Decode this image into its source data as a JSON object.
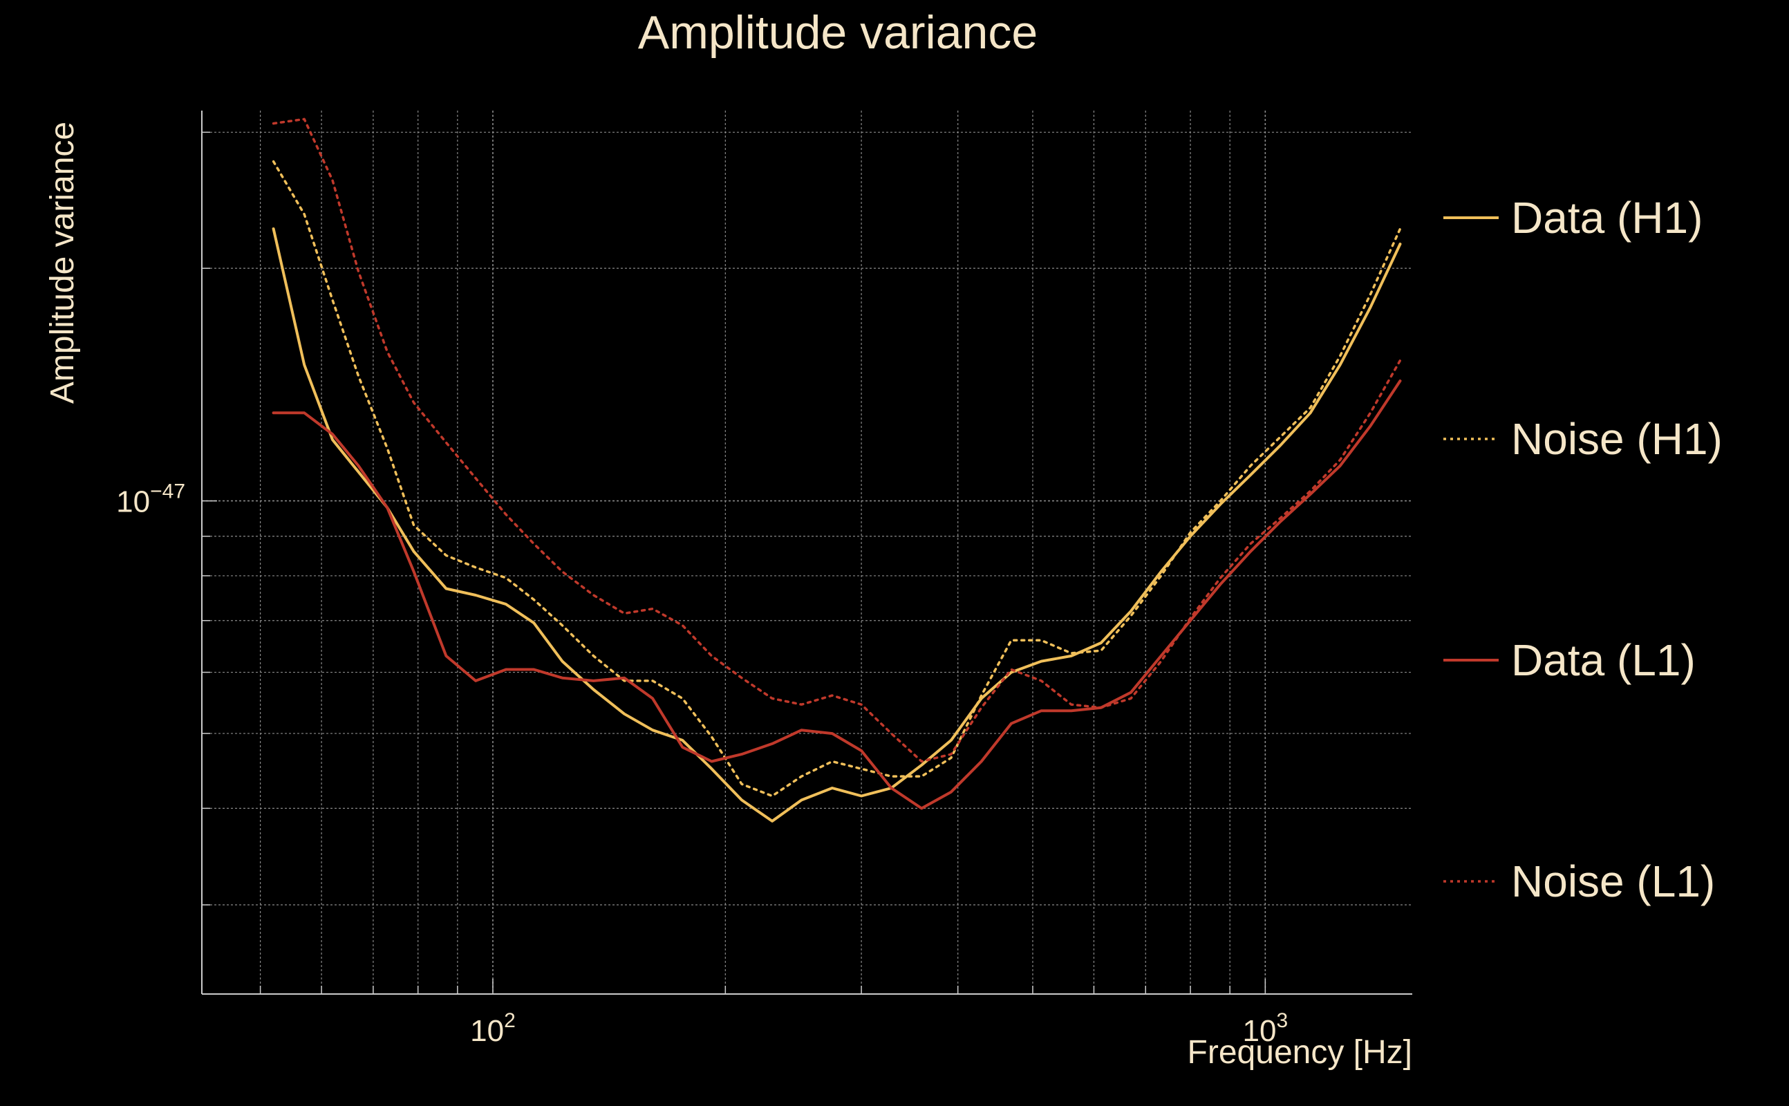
{
  "chart_data": {
    "type": "line",
    "title": "Amplitude variance",
    "xlabel": "Frequency [Hz]",
    "ylabel": "Amplitude variance",
    "xscale": "log",
    "yscale": "log",
    "xlim": [
      42,
      1550
    ],
    "ylim": [
      2.3e-48,
      3.2e-47
    ],
    "grid": true,
    "legend_position": "right",
    "x_ticks": [
      {
        "value": 100,
        "base": "10",
        "exp": "2"
      },
      {
        "value": 1000,
        "base": "10",
        "exp": "3"
      }
    ],
    "y_ticks": [
      {
        "value": 1e-47,
        "base": "10",
        "exp": "−47"
      }
    ],
    "x": [
      52,
      57,
      62,
      67,
      73,
      79,
      87,
      95,
      104,
      113,
      123,
      135,
      148,
      161,
      176,
      192,
      210,
      230,
      251,
      275,
      300,
      328,
      359,
      392,
      429,
      469,
      513,
      561,
      613,
      670,
      733,
      800,
      875,
      957,
      1046,
      1144,
      1250,
      1368,
      1495
    ],
    "series": [
      {
        "name": "Data (H1)",
        "color": "#f0bf5a",
        "dash": "solid",
        "values": [
          2.25e-47,
          1.5e-47,
          1.2e-47,
          1.09e-47,
          9.8e-48,
          8.6e-48,
          7.7e-48,
          7.55e-48,
          7.35e-48,
          6.95e-48,
          6.2e-48,
          5.7e-48,
          5.3e-48,
          5.05e-48,
          4.9e-48,
          4.5e-48,
          4.1e-48,
          3.85e-48,
          4.1e-48,
          4.25e-48,
          4.15e-48,
          4.25e-48,
          4.55e-48,
          4.9e-48,
          5.55e-48,
          6e-48,
          6.2e-48,
          6.3e-48,
          6.55e-48,
          7.2e-48,
          8.1e-48,
          9e-48,
          9.9e-48,
          1.08e-47,
          1.18e-47,
          1.3e-47,
          1.5e-47,
          1.78e-47,
          2.15e-47
        ]
      },
      {
        "name": "Noise (H1)",
        "color": "#f0bf5a",
        "dash": "dotted",
        "values": [
          2.75e-47,
          2.35e-47,
          1.82e-47,
          1.45e-47,
          1.17e-47,
          9.3e-48,
          8.5e-48,
          8.2e-48,
          7.95e-48,
          7.45e-48,
          6.9e-48,
          6.3e-48,
          5.85e-48,
          5.85e-48,
          5.55e-48,
          4.95e-48,
          4.3e-48,
          4.15e-48,
          4.4e-48,
          4.6e-48,
          4.5e-48,
          4.4e-48,
          4.4e-48,
          4.65e-48,
          5.6e-48,
          6.6e-48,
          6.6e-48,
          6.35e-48,
          6.4e-48,
          7.1e-48,
          8e-48,
          9.1e-48,
          1e-47,
          1.11e-47,
          1.21e-47,
          1.32e-47,
          1.54e-47,
          1.85e-47,
          2.25e-47
        ]
      },
      {
        "name": "Data (L1)",
        "color": "#c0392b",
        "dash": "solid",
        "values": [
          1.3e-47,
          1.3e-47,
          1.22e-47,
          1.11e-47,
          9.8e-48,
          8.1e-48,
          6.3e-48,
          5.85e-48,
          6.05e-48,
          6.05e-48,
          5.9e-48,
          5.85e-48,
          5.9e-48,
          5.55e-48,
          4.8e-48,
          4.6e-48,
          4.7e-48,
          4.85e-48,
          5.05e-48,
          5e-48,
          4.75e-48,
          4.25e-48,
          4e-48,
          4.2e-48,
          4.6e-48,
          5.15e-48,
          5.35e-48,
          5.35e-48,
          5.4e-48,
          5.65e-48,
          6.3e-48,
          7e-48,
          7.8e-48,
          8.6e-48,
          9.4e-48,
          1.02e-47,
          1.11e-47,
          1.25e-47,
          1.43e-47
        ]
      },
      {
        "name": "Noise (L1)",
        "color": "#c0392b",
        "dash": "dotted",
        "values": [
          3.08e-47,
          3.12e-47,
          2.6e-47,
          1.98e-47,
          1.56e-47,
          1.34e-47,
          1.19e-47,
          1.07e-47,
          9.6e-48,
          8.8e-48,
          8.1e-48,
          7.55e-48,
          7.15e-48,
          7.25e-48,
          6.9e-48,
          6.3e-48,
          5.9e-48,
          5.55e-48,
          5.45e-48,
          5.6e-48,
          5.45e-48,
          5e-48,
          4.6e-48,
          4.7e-48,
          5.4e-48,
          6.05e-48,
          5.85e-48,
          5.45e-48,
          5.4e-48,
          5.55e-48,
          6.2e-48,
          7.05e-48,
          7.95e-48,
          8.8e-48,
          9.5e-48,
          1.03e-47,
          1.13e-47,
          1.3e-47,
          1.52e-47
        ]
      }
    ]
  }
}
